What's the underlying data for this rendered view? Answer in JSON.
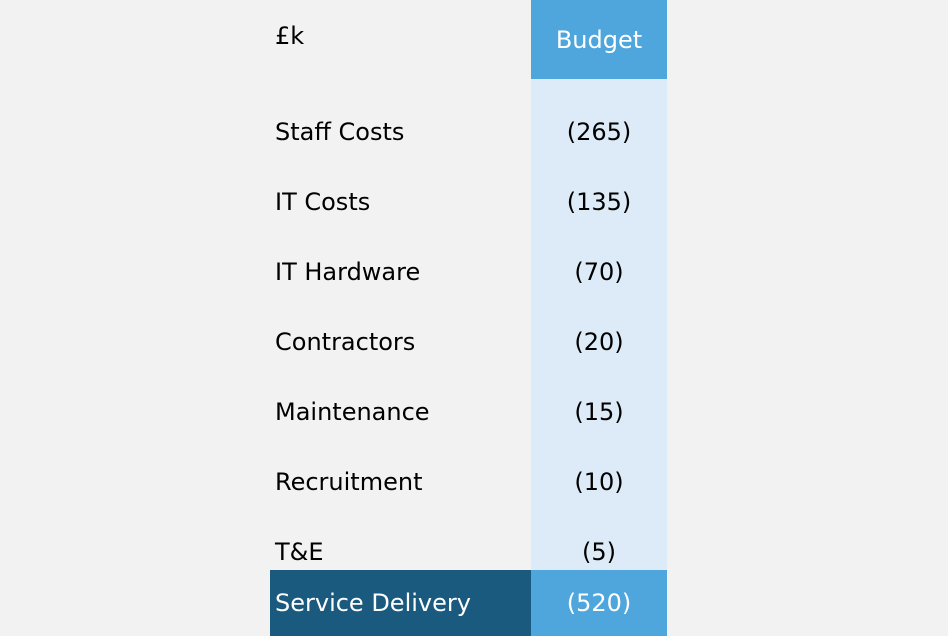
{
  "table": {
    "unit_label": "£k",
    "column_header": "Budget",
    "rows": [
      {
        "label": "Staff Costs",
        "value": "(265)"
      },
      {
        "label": "IT Costs",
        "value": "(135)"
      },
      {
        "label": "IT Hardware",
        "value": "(70)"
      },
      {
        "label": "Contractors",
        "value": "(20)"
      },
      {
        "label": "Maintenance",
        "value": "(15)"
      },
      {
        "label": "Recruitment",
        "value": "(10)"
      },
      {
        "label": "T&E",
        "value": "(5)"
      }
    ],
    "total": {
      "label": "Service Delivery",
      "value": "(520)"
    }
  },
  "colors": {
    "page_background": "#f2f2f2",
    "header_blue": "#4fa6dc",
    "column_light_blue": "#dcebf7",
    "total_label_dark_blue": "#1a5a7e",
    "text_white": "#ffffff",
    "text_black": "#000000"
  }
}
